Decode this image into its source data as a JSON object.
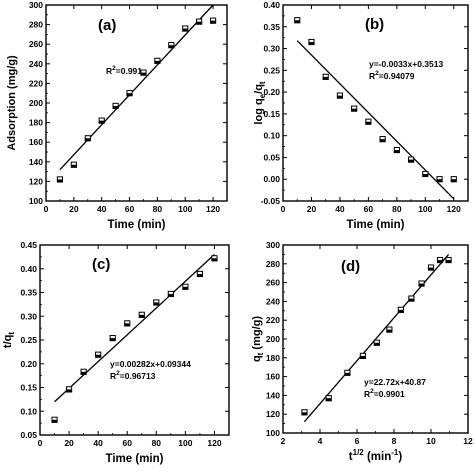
{
  "chart_data": [
    {
      "id": "a",
      "type": "scatter",
      "panel_label": "(a)",
      "xlabel": "Time (min)",
      "ylabel": "Adsorption (mg/g)",
      "xlim": [
        0,
        130
      ],
      "ylim": [
        100,
        300
      ],
      "xticks": [
        0,
        20,
        40,
        60,
        80,
        100,
        120
      ],
      "yticks": [
        100,
        120,
        140,
        160,
        180,
        200,
        220,
        240,
        260,
        280,
        300
      ],
      "points": {
        "x": [
          10,
          20,
          30,
          40,
          50,
          60,
          70,
          80,
          90,
          100,
          110,
          120
        ],
        "y": [
          122,
          137,
          164,
          182,
          197,
          210,
          231,
          243,
          259,
          276,
          283,
          284
        ]
      },
      "fit_line": {
        "x": [
          10,
          120
        ],
        "y": [
          132,
          300
        ]
      },
      "annotation": {
        "base": "R",
        "sup": "2",
        "rest": "=0.991"
      }
    },
    {
      "id": "b",
      "type": "scatter",
      "panel_label": "(b)",
      "xlabel": "Time (min)",
      "ylabel": "log qe/qt",
      "xlim": [
        0,
        130
      ],
      "ylim": [
        -0.05,
        0.4
      ],
      "xticks": [
        0,
        20,
        40,
        60,
        80,
        100,
        120
      ],
      "yticks": [
        -0.05,
        0.0,
        0.05,
        0.1,
        0.15,
        0.2,
        0.25,
        0.3,
        0.35,
        0.4
      ],
      "points": {
        "x": [
          10,
          20,
          30,
          40,
          50,
          60,
          70,
          80,
          90,
          100,
          110,
          120
        ],
        "y": [
          0.365,
          0.315,
          0.235,
          0.192,
          0.162,
          0.132,
          0.092,
          0.067,
          0.045,
          0.012,
          0.0,
          0.0
        ]
      },
      "fit_line": {
        "x": [
          10,
          120
        ],
        "y": [
          0.318,
          -0.045
        ]
      },
      "annotation_lines": [
        "y=-0.0033x+0.3513"
      ],
      "annotation": {
        "base": "R",
        "sup": "2",
        "rest": "=0.94079"
      }
    },
    {
      "id": "c",
      "type": "scatter",
      "panel_label": "(c)",
      "xlabel": "Time (min)",
      "ylabel": "t/qt",
      "xlim": [
        0,
        130
      ],
      "ylim": [
        0.05,
        0.45
      ],
      "xticks": [
        0,
        20,
        40,
        60,
        80,
        100,
        120
      ],
      "yticks": [
        0.05,
        0.1,
        0.15,
        0.2,
        0.25,
        0.3,
        0.35,
        0.4,
        0.45
      ],
      "points": {
        "x": [
          10,
          20,
          30,
          40,
          50,
          60,
          70,
          80,
          90,
          100,
          110,
          120
        ],
        "y": [
          0.082,
          0.146,
          0.183,
          0.219,
          0.254,
          0.285,
          0.303,
          0.329,
          0.347,
          0.362,
          0.389,
          0.422
        ]
      },
      "fit_line": {
        "x": [
          10,
          120
        ],
        "y": [
          0.12,
          0.43
        ]
      },
      "annotation_lines": [
        "y=0.00282x+0.09344"
      ],
      "annotation": {
        "base": "R",
        "sup": "2",
        "rest": "=0.96713"
      }
    },
    {
      "id": "d",
      "type": "scatter",
      "panel_label": "(d)",
      "xlabel": "t1/2 (min-1)",
      "ylabel": "qt (mg/g)",
      "xlim": [
        2,
        12
      ],
      "ylim": [
        100,
        300
      ],
      "xticks": [
        2,
        4,
        6,
        8,
        10,
        12
      ],
      "yticks": [
        100,
        120,
        140,
        160,
        180,
        200,
        220,
        240,
        260,
        280,
        300
      ],
      "points": {
        "x": [
          3.16,
          4.47,
          5.48,
          6.32,
          7.07,
          7.75,
          8.37,
          8.94,
          9.49,
          10.0,
          10.49,
          10.95
        ],
        "y": [
          122,
          137,
          164,
          182,
          196,
          210,
          231,
          243,
          259,
          276,
          284,
          284
        ]
      },
      "fit_line": {
        "x": [
          3.16,
          10.95
        ],
        "y": [
          112,
          290
        ]
      },
      "annotation_lines": [
        "y=22.72x+40.87"
      ],
      "annotation": {
        "base": "R",
        "sup": "2",
        "rest": "=0.9901"
      }
    }
  ]
}
